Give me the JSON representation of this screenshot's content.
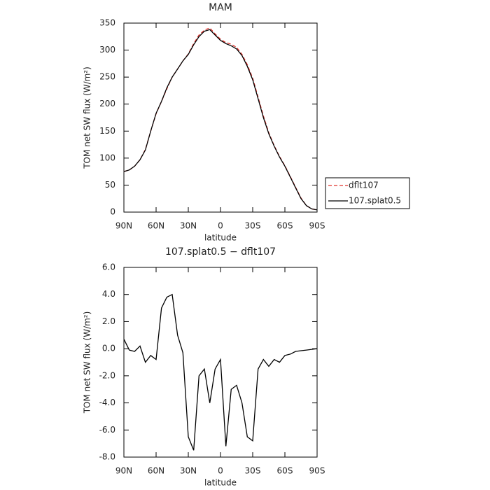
{
  "chart_data": [
    {
      "type": "line",
      "title": "MAM",
      "xlabel": "latitude",
      "ylabel": "TOM net SW flux (W/m²)",
      "x": [
        90,
        85,
        80,
        75,
        70,
        65,
        60,
        55,
        50,
        45,
        40,
        35,
        30,
        25,
        20,
        15,
        10,
        5,
        0,
        -5,
        -10,
        -15,
        -20,
        -25,
        -30,
        -35,
        -40,
        -45,
        -50,
        -55,
        -60,
        -65,
        -70,
        -75,
        -80,
        -85,
        -90
      ],
      "xlim": [
        90,
        -90
      ],
      "xticks": [
        {
          "value": 90,
          "label": "90N"
        },
        {
          "value": 60,
          "label": "60N"
        },
        {
          "value": 30,
          "label": "30N"
        },
        0,
        {
          "value": -30,
          "label": "30S"
        },
        {
          "value": -60,
          "label": "60S"
        },
        {
          "value": -90,
          "label": "90S"
        }
      ],
      "ylim": [
        0,
        350
      ],
      "yticks": [
        0,
        50,
        100,
        150,
        200,
        250,
        300,
        350
      ],
      "legend": "right",
      "series": [
        {
          "name": "dflt107",
          "color": "#e0302a",
          "dash": true,
          "values": [
            75,
            78,
            85,
            97,
            116,
            150,
            182,
            205,
            228,
            250,
            265,
            280,
            293,
            312,
            328,
            337,
            341,
            330,
            320,
            314,
            311,
            305,
            292,
            273,
            248,
            213,
            178,
            147,
            123,
            103,
            86,
            66,
            46,
            26,
            12,
            6,
            4
          ]
        },
        {
          "name": "107.splat0.5",
          "color": "#000000",
          "dash": false,
          "values": [
            75,
            78,
            85,
            97,
            115,
            150,
            183,
            205,
            230,
            250,
            265,
            280,
            292,
            310,
            325,
            335,
            338,
            328,
            318,
            312,
            308,
            302,
            290,
            270,
            245,
            210,
            175,
            145,
            122,
            102,
            85,
            65,
            45,
            25,
            12,
            6,
            4
          ]
        }
      ]
    },
    {
      "type": "line",
      "title": "107.splat0.5 − dflt107",
      "xlabel": "latitude",
      "ylabel": "TOM net SW flux (W/m²)",
      "x": [
        90,
        85,
        80,
        75,
        70,
        65,
        60,
        55,
        50,
        45,
        40,
        35,
        30,
        25,
        20,
        15,
        10,
        5,
        0,
        -5,
        -10,
        -15,
        -20,
        -25,
        -30,
        -35,
        -40,
        -45,
        -50,
        -55,
        -60,
        -65,
        -70,
        -75,
        -80,
        -85,
        -90
      ],
      "xlim": [
        90,
        -90
      ],
      "xticks": [
        {
          "value": 90,
          "label": "90N"
        },
        {
          "value": 60,
          "label": "60N"
        },
        {
          "value": 30,
          "label": "30N"
        },
        0,
        {
          "value": -30,
          "label": "30S"
        },
        {
          "value": -60,
          "label": "60S"
        },
        {
          "value": -90,
          "label": "90S"
        }
      ],
      "ylim": [
        -8,
        6
      ],
      "yticks": [
        {
          "value": -8,
          "label": "-8.0"
        },
        {
          "value": -6,
          "label": "-6.0"
        },
        {
          "value": -4,
          "label": "-4.0"
        },
        {
          "value": -2,
          "label": "-2.0"
        },
        {
          "value": 0,
          "label": "0.0"
        },
        {
          "value": 2,
          "label": "2.0"
        },
        {
          "value": 4,
          "label": "4.0"
        },
        {
          "value": 6,
          "label": "6.0"
        }
      ],
      "series": [
        {
          "color": "#000000",
          "dash": false,
          "values": [
            0.7,
            -0.1,
            -0.2,
            0.2,
            -1.0,
            -0.5,
            -0.8,
            3.0,
            3.8,
            4.0,
            1.0,
            -0.3,
            -6.5,
            -7.5,
            -2.0,
            -1.5,
            -4.0,
            -1.5,
            -0.8,
            -7.2,
            -3.0,
            -2.7,
            -4.0,
            -6.5,
            -6.8,
            -1.5,
            -0.8,
            -1.3,
            -0.8,
            -1.0,
            -0.5,
            -0.4,
            -0.2,
            -0.15,
            -0.1,
            -0.05,
            0
          ]
        }
      ]
    }
  ]
}
